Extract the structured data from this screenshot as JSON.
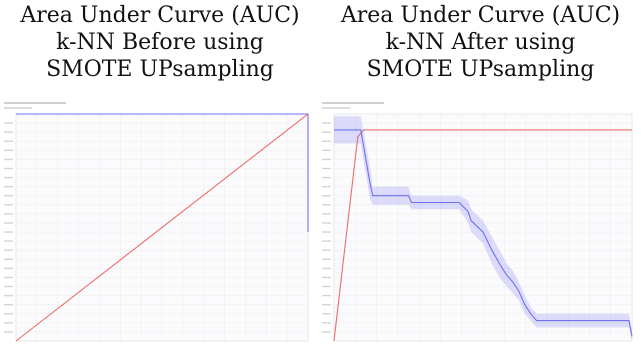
{
  "panels": [
    {
      "caption": [
        "Area Under Curve (AUC)",
        "k-NN Before using",
        "SMOTE UPsampling"
      ]
    },
    {
      "caption": [
        "Area Under Curve (AUC)",
        "k-NN After using",
        "SMOTE UPsampling"
      ]
    }
  ],
  "chart_data": [
    {
      "type": "line",
      "title": "",
      "xlim": [
        0,
        1
      ],
      "ylim": [
        0,
        1
      ],
      "grid": true,
      "series": [
        {
          "color": "#ef6b6b",
          "x": [
            0,
            1
          ],
          "y": [
            0,
            1
          ]
        },
        {
          "color": "#6f6ff2",
          "x": [
            0,
            1,
            1
          ],
          "y": [
            1,
            1,
            0.48
          ]
        }
      ]
    },
    {
      "type": "line",
      "title": "",
      "xlim": [
        0,
        1
      ],
      "ylim": [
        0,
        1
      ],
      "grid": true,
      "series": [
        {
          "color": "#ef6b6b",
          "x": [
            0,
            0.08,
            0.1,
            1
          ],
          "y": [
            0,
            0.9,
            0.93,
            0.93
          ]
        },
        {
          "color": "#6f6ff2",
          "x": [
            0,
            0.05,
            0.09,
            0.12,
            0.13,
            0.25,
            0.26,
            0.42,
            0.45,
            0.46,
            0.5,
            0.53,
            0.56,
            0.58,
            0.6,
            0.62,
            0.64,
            0.66,
            0.68,
            0.99,
            1.0
          ],
          "y": [
            0.93,
            0.93,
            0.93,
            0.7,
            0.64,
            0.64,
            0.61,
            0.61,
            0.57,
            0.53,
            0.48,
            0.4,
            0.33,
            0.29,
            0.26,
            0.22,
            0.16,
            0.12,
            0.09,
            0.09,
            0.02
          ],
          "band": [
            0.06,
            0.06,
            0.06,
            0.07,
            0.04,
            0.04,
            0.03,
            0.03,
            0.05,
            0.05,
            0.05,
            0.06,
            0.06,
            0.05,
            0.05,
            0.04,
            0.04,
            0.03,
            0.03,
            0.03,
            0.02
          ]
        }
      ]
    }
  ]
}
